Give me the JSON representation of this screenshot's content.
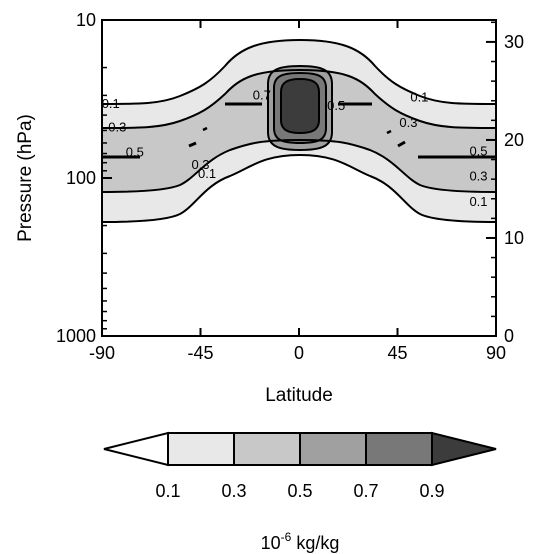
{
  "chart_data": {
    "type": "contour",
    "xlabel": "Latitude",
    "ylabel": "Pressure (hPa)",
    "x_ticks": [
      -90,
      -45,
      0,
      45,
      90
    ],
    "xlim": [
      -90,
      90
    ],
    "y_scale": "log",
    "y_ticks": [
      10,
      100,
      1000
    ],
    "ylim": [
      1000,
      10
    ],
    "y2_ticks": [
      0,
      10,
      20,
      30
    ],
    "levels": [
      0.1,
      0.3,
      0.5,
      0.7,
      0.9
    ],
    "colorbar": {
      "labels": [
        "0.1",
        "0.3",
        "0.5",
        "0.7",
        "0.9"
      ],
      "colors": [
        "#ffffff",
        "#e8e8e8",
        "#c8c8c8",
        "#a0a0a0",
        "#787878",
        "#3c3c3c"
      ],
      "units_base": "10",
      "units_exp": "-6",
      "units_rest": " kg/kg"
    },
    "contour_labels": [
      {
        "lat": -86,
        "p": 34,
        "text": "0.1"
      },
      {
        "lat": -83,
        "p": 48,
        "text": "0.3"
      },
      {
        "lat": -75,
        "p": 69,
        "text": "0.5"
      },
      {
        "lat": -45,
        "p": 83,
        "text": "0.3"
      },
      {
        "lat": -42,
        "p": 94,
        "text": "0.1"
      },
      {
        "lat": -17,
        "p": 30,
        "text": "0.7"
      },
      {
        "lat": 17,
        "p": 35,
        "text": "0.5"
      },
      {
        "lat": 55,
        "p": 31,
        "text": "0.1"
      },
      {
        "lat": 50,
        "p": 45,
        "text": "0.3"
      },
      {
        "lat": 82,
        "p": 68,
        "text": "0.5"
      },
      {
        "lat": 82,
        "p": 98,
        "text": "0.3"
      },
      {
        "lat": 82,
        "p": 142,
        "text": "0.1"
      }
    ]
  }
}
